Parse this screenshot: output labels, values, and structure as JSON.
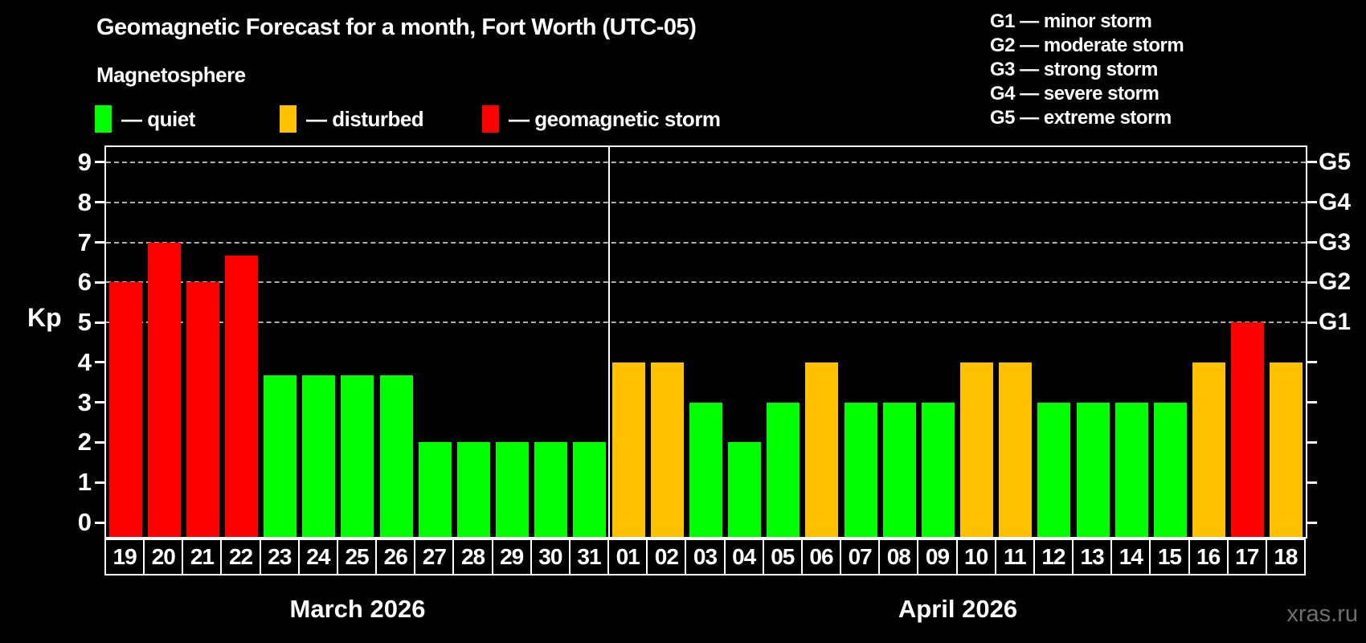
{
  "title": "Geomagnetic Forecast for a month, Fort Worth (UTC-05)",
  "subtitle": "Magnetosphere",
  "legend": {
    "items": [
      {
        "key": "quiet",
        "label": "— quiet",
        "color": "#00ff00"
      },
      {
        "key": "disturbed",
        "label": "— disturbed",
        "color": "#ffc000"
      },
      {
        "key": "storm",
        "label": "— geomagnetic storm",
        "color": "#ff0000"
      }
    ]
  },
  "g_legend": {
    "items": [
      {
        "code": "G1",
        "label": "G1 — minor storm"
      },
      {
        "code": "G2",
        "label": "G2 — moderate storm"
      },
      {
        "code": "G3",
        "label": "G3 — strong storm"
      },
      {
        "code": "G4",
        "label": "G4 — severe storm"
      },
      {
        "code": "G5",
        "label": "G5 — extreme storm"
      }
    ]
  },
  "watermark": "xras.ru",
  "chart_data": {
    "type": "bar",
    "ylabel": "Kp",
    "ylim": [
      -0.36,
      9.38
    ],
    "yticks": [
      0,
      1,
      2,
      3,
      4,
      5,
      6,
      7,
      8,
      9
    ],
    "gridlines_kp": [
      5,
      6,
      7,
      8,
      9
    ],
    "grid": "dashed, storm levels only",
    "right_axis": [
      {
        "label": "G1",
        "kp": 5
      },
      {
        "label": "G2",
        "kp": 6
      },
      {
        "label": "G3",
        "kp": 7
      },
      {
        "label": "G4",
        "kp": 8
      },
      {
        "label": "G5",
        "kp": 9
      }
    ],
    "status_colors": {
      "quiet": "#00ff00",
      "disturbed": "#ffc000",
      "storm": "#ff0000"
    },
    "months": [
      {
        "label": "March 2026",
        "days": [
          {
            "day": "19",
            "kp": 6,
            "status": "storm"
          },
          {
            "day": "20",
            "kp": 7,
            "status": "storm"
          },
          {
            "day": "21",
            "kp": 6,
            "status": "storm"
          },
          {
            "day": "22",
            "kp": 6.67,
            "status": "storm"
          },
          {
            "day": "23",
            "kp": 3.67,
            "status": "quiet"
          },
          {
            "day": "24",
            "kp": 3.67,
            "status": "quiet"
          },
          {
            "day": "25",
            "kp": 3.67,
            "status": "quiet"
          },
          {
            "day": "26",
            "kp": 3.67,
            "status": "quiet"
          },
          {
            "day": "27",
            "kp": 2,
            "status": "quiet"
          },
          {
            "day": "28",
            "kp": 2,
            "status": "quiet"
          },
          {
            "day": "29",
            "kp": 2,
            "status": "quiet"
          },
          {
            "day": "30",
            "kp": 2,
            "status": "quiet"
          },
          {
            "day": "31",
            "kp": 2,
            "status": "quiet"
          }
        ]
      },
      {
        "label": "April 2026",
        "days": [
          {
            "day": "01",
            "kp": 4,
            "status": "disturbed"
          },
          {
            "day": "02",
            "kp": 4,
            "status": "disturbed"
          },
          {
            "day": "03",
            "kp": 3,
            "status": "quiet"
          },
          {
            "day": "04",
            "kp": 2,
            "status": "quiet"
          },
          {
            "day": "05",
            "kp": 3,
            "status": "quiet"
          },
          {
            "day": "06",
            "kp": 4,
            "status": "disturbed"
          },
          {
            "day": "07",
            "kp": 3,
            "status": "quiet"
          },
          {
            "day": "08",
            "kp": 3,
            "status": "quiet"
          },
          {
            "day": "09",
            "kp": 3,
            "status": "quiet"
          },
          {
            "day": "10",
            "kp": 4,
            "status": "disturbed"
          },
          {
            "day": "11",
            "kp": 4,
            "status": "disturbed"
          },
          {
            "day": "12",
            "kp": 3,
            "status": "quiet"
          },
          {
            "day": "13",
            "kp": 3,
            "status": "quiet"
          },
          {
            "day": "14",
            "kp": 3,
            "status": "quiet"
          },
          {
            "day": "15",
            "kp": 3,
            "status": "quiet"
          },
          {
            "day": "16",
            "kp": 4,
            "status": "disturbed"
          },
          {
            "day": "17",
            "kp": 5,
            "status": "storm"
          },
          {
            "day": "18",
            "kp": 4,
            "status": "disturbed"
          }
        ]
      }
    ]
  }
}
